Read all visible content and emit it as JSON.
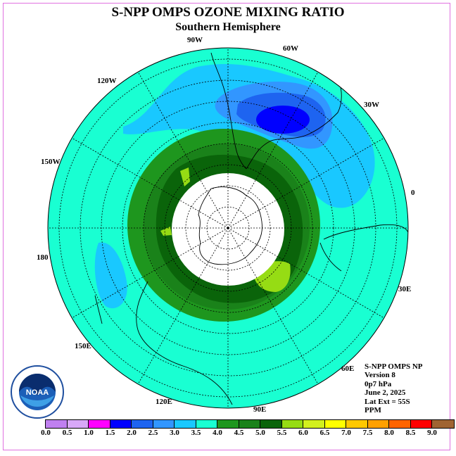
{
  "title": "S-NPP OMPS OZONE MIXING RATIO",
  "subtitle": "Southern Hemisphere",
  "longitude_labels": {
    "w90": "90W",
    "w60": "60W",
    "w30": "30W",
    "w120": "120W",
    "w150": "150W",
    "zero": "0",
    "d180": "180",
    "e30": "30E",
    "e60": "60E",
    "e90": "90E",
    "e120": "120E",
    "e150": "150E"
  },
  "info": {
    "instrument": "S-NPP OMPS NP",
    "version": "Version 8",
    "level": "0p7 hPa",
    "date": "June 2, 2025",
    "lat_ext": "Lat Ext = 55S",
    "units": "PPM"
  },
  "logo": {
    "text": "NOAA",
    "icon": "noaa-logo-icon"
  },
  "colorbar": {
    "colors": [
      "#c080f0",
      "#d8a8f8",
      "#ff00ff",
      "#0000ff",
      "#1e64f0",
      "#3296ff",
      "#19c8ff",
      "#19ffd2",
      "#1e961e",
      "#1a821a",
      "#0a640a",
      "#96dc14",
      "#d2f01e",
      "#ffff00",
      "#ffc800",
      "#ffa000",
      "#ff6400",
      "#ff0000",
      "#a06432"
    ],
    "ticks": [
      "0.0",
      "0.5",
      "1.0",
      "1.5",
      "2.0",
      "2.5",
      "3.0",
      "3.5",
      "4.0",
      "4.5",
      "5.0",
      "5.5",
      "6.0",
      "6.5",
      "7.0",
      "7.5",
      "8.0",
      "8.5",
      "9.0"
    ]
  }
}
